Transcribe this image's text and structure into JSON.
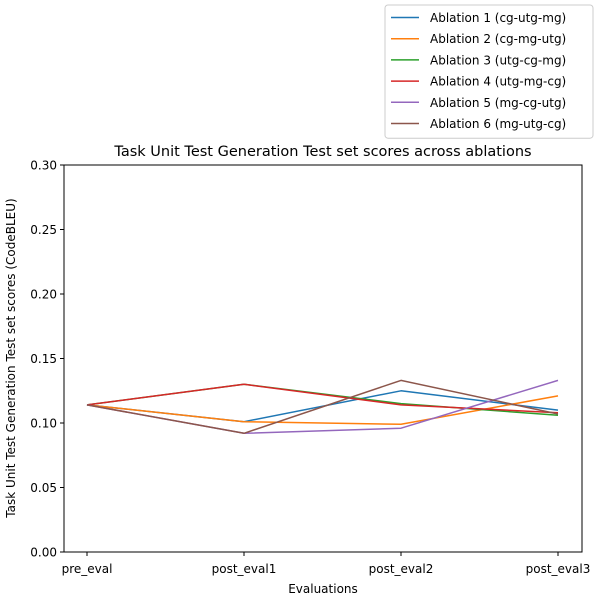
{
  "chart_data": {
    "type": "line",
    "title": "Task Unit Test Generation Test set scores across ablations",
    "xlabel": "Evaluations",
    "ylabel": "Task Unit Test Generation Test set scores (CodeBLEU)",
    "categories": [
      "pre_eval",
      "post_eval1",
      "post_eval2",
      "post_eval3"
    ],
    "ylim": [
      0.0,
      0.3
    ],
    "yticks": [
      "0.00",
      "0.05",
      "0.10",
      "0.15",
      "0.20",
      "0.25",
      "0.30"
    ],
    "grid": false,
    "legend_position": "top-right, outside above plot",
    "series": [
      {
        "name": "Ablation 1 (cg-utg-mg)",
        "color": "#1f77b4",
        "values": [
          0.114,
          0.101,
          0.125,
          0.11
        ]
      },
      {
        "name": "Ablation 2 (cg-mg-utg)",
        "color": "#ff7f0e",
        "values": [
          0.114,
          0.101,
          0.099,
          0.121
        ]
      },
      {
        "name": "Ablation 3 (utg-cg-mg)",
        "color": "#2ca02c",
        "values": [
          0.114,
          0.13,
          0.115,
          0.106
        ]
      },
      {
        "name": "Ablation 4 (utg-mg-cg)",
        "color": "#d62728",
        "values": [
          0.114,
          0.13,
          0.114,
          0.108
        ]
      },
      {
        "name": "Ablation 5 (mg-cg-utg)",
        "color": "#9467bd",
        "values": [
          0.114,
          0.092,
          0.096,
          0.133
        ]
      },
      {
        "name": "Ablation 6 (mg-utg-cg)",
        "color": "#8c564b",
        "values": [
          0.114,
          0.092,
          0.133,
          0.107
        ]
      }
    ]
  }
}
